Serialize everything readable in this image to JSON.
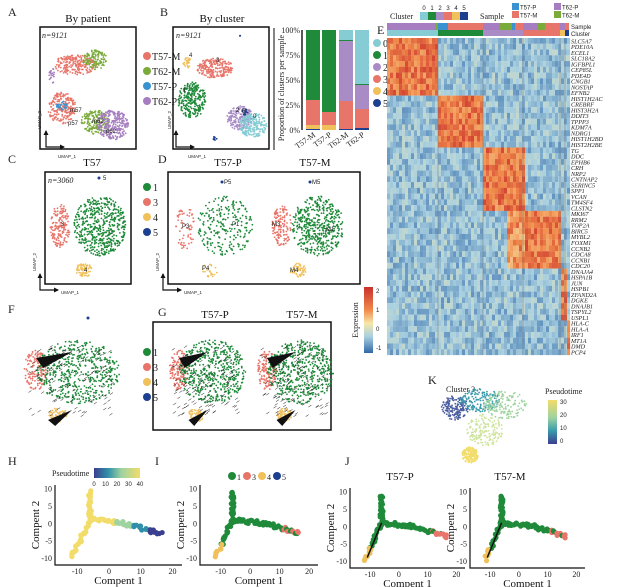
{
  "panels": {
    "A": {
      "label": "A",
      "title": "By patient",
      "n": "n=9121",
      "axis_x": "UMAP_1",
      "axis_y": "UMAP_2",
      "cluster_labels": [
        "m57",
        "p57",
        "m62",
        "p62"
      ],
      "legend": [
        {
          "name": "T57-M",
          "color": "#e8756a"
        },
        {
          "name": "T62-M",
          "color": "#7aab3a"
        },
        {
          "name": "T57-P",
          "color": "#3a93d0"
        },
        {
          "name": "T62-P",
          "color": "#a57dc0"
        }
      ]
    },
    "B": {
      "label": "B",
      "title": "By cluster",
      "n": "n=9121",
      "axis_x": "UMAP_1",
      "axis_y": "UMAP_2",
      "cluster_labels": [
        "4",
        "3",
        "1",
        "2",
        "5",
        "0"
      ]
    },
    "C": {
      "label": "C",
      "title": "T57",
      "n": "n=3060",
      "axis_x": "UMAP_1",
      "axis_y": "UMAP_2",
      "cluster_labels": [
        "5",
        "3",
        "1",
        "4"
      ],
      "legend": [
        {
          "name": "1",
          "color": "#1f8a3a"
        },
        {
          "name": "3",
          "color": "#e8756a"
        },
        {
          "name": "4",
          "color": "#f0c05a"
        },
        {
          "name": "5",
          "color": "#1d3f8f"
        }
      ]
    },
    "D": {
      "label": "D",
      "titles": [
        "T57-P",
        "T57-M"
      ],
      "axis_x": "UMAP_1",
      "axis_y": "UMAP_2",
      "cluster_labels_p": [
        "P5",
        "P3",
        "P1",
        "P4"
      ],
      "cluster_labels_m": [
        "M5",
        "M3",
        "M1",
        "M4"
      ]
    },
    "E": {
      "label": "E",
      "cluster_title": "Cluster",
      "sample_title": "Sample",
      "row_labels": [
        "Sample",
        "Cluster"
      ],
      "cluster_legend": [
        {
          "name": "0",
          "color": "#86ccd4"
        },
        {
          "name": "1",
          "color": "#1f8a3a"
        },
        {
          "name": "2",
          "color": "#a98cc6"
        },
        {
          "name": "3",
          "color": "#e8756a"
        },
        {
          "name": "4",
          "color": "#f0c05a"
        },
        {
          "name": "5",
          "color": "#1d3f8f"
        }
      ],
      "sample_legend": [
        {
          "name": "T57-P",
          "color": "#3a93d0"
        },
        {
          "name": "T62-P",
          "color": "#a57dc0"
        },
        {
          "name": "T57-M",
          "color": "#e8756a"
        },
        {
          "name": "T62-M",
          "color": "#7aab3a"
        }
      ],
      "colorbar_title": "Expression",
      "colorbar_ticks": [
        "2",
        "1",
        "0",
        "-1"
      ],
      "genes": [
        "SLC5A7",
        "PDE10A",
        "ECEL1",
        "SLC18A2",
        "IGFBPL1",
        "CEP85L",
        "PDE4D",
        "CNGB1",
        "NOSTAP",
        "EFNB2",
        "HIST1H2AC",
        "CREBRF",
        "HIST3H2A",
        "DDIT3",
        "TPPP3",
        "KDM7A",
        "NDRG1",
        "HIST1H2BD",
        "HIST2H2BE",
        "TG",
        "DDC",
        "EPHB6",
        "CRH",
        "NRP2",
        "CNTNAP2",
        "SERINC5",
        "SPP1",
        "VCAN",
        "TM4SF4",
        "CLSTN2",
        "MKI67",
        "RRM2",
        "TOP2A",
        "BIRC5",
        "MYBL2",
        "FOXM1",
        "CCNB2",
        "CDCA8",
        "CCNB1",
        "CDC20",
        "DNAJA4",
        "HSPA1B",
        "JUN",
        "HSPB1",
        "ZFAND2A",
        "DGKE",
        "DNAJB1",
        "TSPYL2",
        "USPL1",
        "HLA-C",
        "HLA-A",
        "IRF1",
        "MT1A",
        "DMD",
        "PCP4"
      ]
    },
    "F": {
      "label": "F",
      "legend": [
        "1",
        "3",
        "4",
        "5"
      ]
    },
    "G": {
      "label": "G",
      "titles": [
        "T57-P",
        "T57-M"
      ]
    },
    "H": {
      "label": "H",
      "colorbar_title": "Pseudotime",
      "colorbar_ticks": [
        "0",
        "10",
        "20",
        "30",
        "40"
      ],
      "xlabel": "Compent 1",
      "ylabel": "Compent 2"
    },
    "I": {
      "label": "I",
      "legend": [
        "1",
        "3",
        "4",
        "5"
      ],
      "xlabel": "Compent 1",
      "ylabel": "Compent 2"
    },
    "J": {
      "label": "J",
      "titles": [
        "T57-P",
        "T57-M"
      ],
      "xlabel": "Compent 1",
      "ylabel": "Compent 2"
    },
    "K": {
      "label": "K",
      "title": "Cluster 3",
      "colorbar_title": "Pseudotime",
      "colorbar_ticks": [
        "30",
        "20",
        "10",
        "0"
      ]
    }
  },
  "chart_data": [
    {
      "type": "bar",
      "stacked": true,
      "ylabel": "Proportion of clusters per sample",
      "categories": [
        "T57-M",
        "T57-P",
        "T62-M",
        "T62-P"
      ],
      "yticks": [
        "0%",
        "25%",
        "50%",
        "75%",
        "100%"
      ],
      "ylim": [
        0,
        100
      ],
      "legend_placement": "right",
      "series": [
        {
          "name": "5",
          "color": "#1d3f8f",
          "values": [
            1,
            0,
            1,
            2
          ]
        },
        {
          "name": "4",
          "color": "#f0c05a",
          "values": [
            4,
            5,
            0,
            0
          ]
        },
        {
          "name": "3",
          "color": "#e8756a",
          "values": [
            25,
            13,
            28,
            19
          ]
        },
        {
          "name": "2",
          "color": "#a98cc6",
          "values": [
            0,
            0,
            60,
            24
          ]
        },
        {
          "name": "1",
          "color": "#1f8a3a",
          "values": [
            70,
            82,
            1,
            1
          ]
        },
        {
          "name": "0",
          "color": "#86ccd4",
          "values": [
            0,
            0,
            10,
            54
          ]
        }
      ]
    },
    {
      "type": "line",
      "panel": "H/I/J",
      "xlabel": "Compent 1",
      "ylabel": "Compent 2",
      "xticks": [
        -10,
        0,
        10,
        20
      ],
      "yticks": [
        -10,
        -5,
        0,
        5,
        10
      ],
      "xlim": [
        -17,
        23
      ],
      "ylim": [
        -12,
        11
      ]
    }
  ]
}
